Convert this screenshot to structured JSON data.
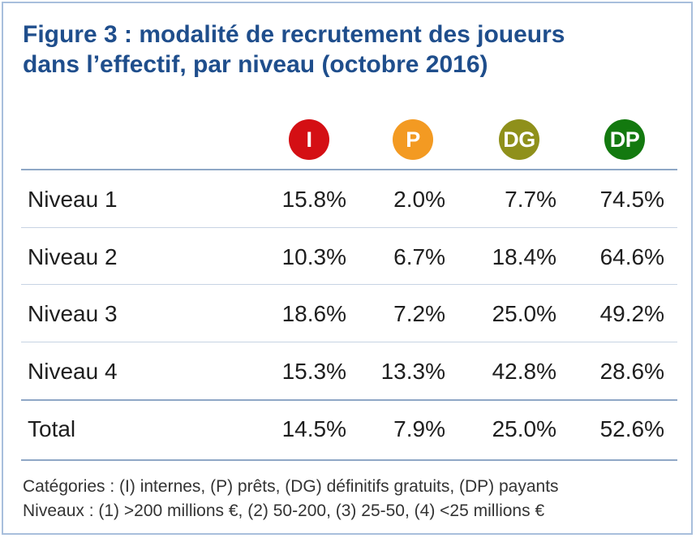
{
  "title_line1": "Figure 3 : modalité de recrutement des joueurs",
  "title_line2": "dans l’effectif, par niveau (octobre 2016)",
  "categories": [
    {
      "code": "I",
      "color": "#d40f14"
    },
    {
      "code": "P",
      "color": "#f39a22"
    },
    {
      "code": "DG",
      "color": "#8f901b"
    },
    {
      "code": "DP",
      "color": "#13790f"
    }
  ],
  "rows": [
    {
      "label": "Niveau 1",
      "values": [
        "15.8%",
        "2.0%",
        "7.7%",
        "74.5%"
      ]
    },
    {
      "label": "Niveau 2",
      "values": [
        "10.3%",
        "6.7%",
        "18.4%",
        "64.6%"
      ]
    },
    {
      "label": "Niveau 3",
      "values": [
        "18.6%",
        "7.2%",
        "25.0%",
        "49.2%"
      ]
    },
    {
      "label": "Niveau 4",
      "values": [
        "15.3%",
        "13.3%",
        "42.8%",
        "28.6%"
      ]
    },
    {
      "label": "Total",
      "values": [
        "14.5%",
        "7.9%",
        "25.0%",
        "52.6%"
      ]
    }
  ],
  "notes": {
    "categories": "Catégories : (I) internes, (P) prêts, (DG) définitifs gratuits, (DP) payants",
    "levels": "Niveaux : (1) >200 millions €, (2) 50-200, (3) 25-50, (4) <25 millions €"
  },
  "colors": {
    "title": "#1f4e8c",
    "border": "#a8bfdc",
    "rule": "#8fa7c6"
  }
}
